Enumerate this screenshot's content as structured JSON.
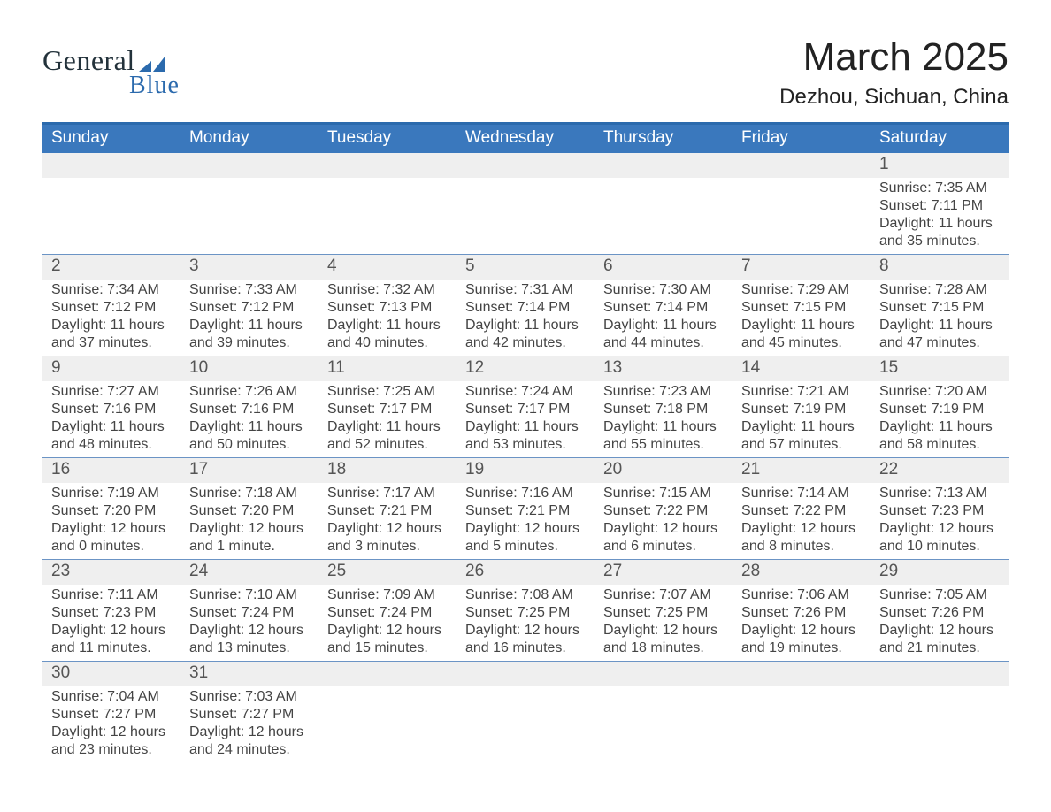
{
  "brand": {
    "text_general": "General",
    "text_blue": "Blue",
    "mark_color": "#2b6aad"
  },
  "title": {
    "main": "March 2025",
    "sub": "Dezhou, Sichuan, China"
  },
  "colors": {
    "header_bg": "#3a78bd",
    "header_border": "#2b6aad",
    "daynum_bg": "#efefef",
    "row_divider": "#6b94c5",
    "text_primary": "#333333",
    "text_light": "#ffffff"
  },
  "dow": [
    "Sunday",
    "Monday",
    "Tuesday",
    "Wednesday",
    "Thursday",
    "Friday",
    "Saturday"
  ],
  "weeks": [
    [
      {
        "n": "",
        "lines": [
          "",
          "",
          "",
          ""
        ]
      },
      {
        "n": "",
        "lines": [
          "",
          "",
          "",
          ""
        ]
      },
      {
        "n": "",
        "lines": [
          "",
          "",
          "",
          ""
        ]
      },
      {
        "n": "",
        "lines": [
          "",
          "",
          "",
          ""
        ]
      },
      {
        "n": "",
        "lines": [
          "",
          "",
          "",
          ""
        ]
      },
      {
        "n": "",
        "lines": [
          "",
          "",
          "",
          ""
        ]
      },
      {
        "n": "1",
        "lines": [
          "Sunrise: 7:35 AM",
          "Sunset: 7:11 PM",
          "Daylight: 11 hours",
          "and 35 minutes."
        ]
      }
    ],
    [
      {
        "n": "2",
        "lines": [
          "Sunrise: 7:34 AM",
          "Sunset: 7:12 PM",
          "Daylight: 11 hours",
          "and 37 minutes."
        ]
      },
      {
        "n": "3",
        "lines": [
          "Sunrise: 7:33 AM",
          "Sunset: 7:12 PM",
          "Daylight: 11 hours",
          "and 39 minutes."
        ]
      },
      {
        "n": "4",
        "lines": [
          "Sunrise: 7:32 AM",
          "Sunset: 7:13 PM",
          "Daylight: 11 hours",
          "and 40 minutes."
        ]
      },
      {
        "n": "5",
        "lines": [
          "Sunrise: 7:31 AM",
          "Sunset: 7:14 PM",
          "Daylight: 11 hours",
          "and 42 minutes."
        ]
      },
      {
        "n": "6",
        "lines": [
          "Sunrise: 7:30 AM",
          "Sunset: 7:14 PM",
          "Daylight: 11 hours",
          "and 44 minutes."
        ]
      },
      {
        "n": "7",
        "lines": [
          "Sunrise: 7:29 AM",
          "Sunset: 7:15 PM",
          "Daylight: 11 hours",
          "and 45 minutes."
        ]
      },
      {
        "n": "8",
        "lines": [
          "Sunrise: 7:28 AM",
          "Sunset: 7:15 PM",
          "Daylight: 11 hours",
          "and 47 minutes."
        ]
      }
    ],
    [
      {
        "n": "9",
        "lines": [
          "Sunrise: 7:27 AM",
          "Sunset: 7:16 PM",
          "Daylight: 11 hours",
          "and 48 minutes."
        ]
      },
      {
        "n": "10",
        "lines": [
          "Sunrise: 7:26 AM",
          "Sunset: 7:16 PM",
          "Daylight: 11 hours",
          "and 50 minutes."
        ]
      },
      {
        "n": "11",
        "lines": [
          "Sunrise: 7:25 AM",
          "Sunset: 7:17 PM",
          "Daylight: 11 hours",
          "and 52 minutes."
        ]
      },
      {
        "n": "12",
        "lines": [
          "Sunrise: 7:24 AM",
          "Sunset: 7:17 PM",
          "Daylight: 11 hours",
          "and 53 minutes."
        ]
      },
      {
        "n": "13",
        "lines": [
          "Sunrise: 7:23 AM",
          "Sunset: 7:18 PM",
          "Daylight: 11 hours",
          "and 55 minutes."
        ]
      },
      {
        "n": "14",
        "lines": [
          "Sunrise: 7:21 AM",
          "Sunset: 7:19 PM",
          "Daylight: 11 hours",
          "and 57 minutes."
        ]
      },
      {
        "n": "15",
        "lines": [
          "Sunrise: 7:20 AM",
          "Sunset: 7:19 PM",
          "Daylight: 11 hours",
          "and 58 minutes."
        ]
      }
    ],
    [
      {
        "n": "16",
        "lines": [
          "Sunrise: 7:19 AM",
          "Sunset: 7:20 PM",
          "Daylight: 12 hours",
          "and 0 minutes."
        ]
      },
      {
        "n": "17",
        "lines": [
          "Sunrise: 7:18 AM",
          "Sunset: 7:20 PM",
          "Daylight: 12 hours",
          "and 1 minute."
        ]
      },
      {
        "n": "18",
        "lines": [
          "Sunrise: 7:17 AM",
          "Sunset: 7:21 PM",
          "Daylight: 12 hours",
          "and 3 minutes."
        ]
      },
      {
        "n": "19",
        "lines": [
          "Sunrise: 7:16 AM",
          "Sunset: 7:21 PM",
          "Daylight: 12 hours",
          "and 5 minutes."
        ]
      },
      {
        "n": "20",
        "lines": [
          "Sunrise: 7:15 AM",
          "Sunset: 7:22 PM",
          "Daylight: 12 hours",
          "and 6 minutes."
        ]
      },
      {
        "n": "21",
        "lines": [
          "Sunrise: 7:14 AM",
          "Sunset: 7:22 PM",
          "Daylight: 12 hours",
          "and 8 minutes."
        ]
      },
      {
        "n": "22",
        "lines": [
          "Sunrise: 7:13 AM",
          "Sunset: 7:23 PM",
          "Daylight: 12 hours",
          "and 10 minutes."
        ]
      }
    ],
    [
      {
        "n": "23",
        "lines": [
          "Sunrise: 7:11 AM",
          "Sunset: 7:23 PM",
          "Daylight: 12 hours",
          "and 11 minutes."
        ]
      },
      {
        "n": "24",
        "lines": [
          "Sunrise: 7:10 AM",
          "Sunset: 7:24 PM",
          "Daylight: 12 hours",
          "and 13 minutes."
        ]
      },
      {
        "n": "25",
        "lines": [
          "Sunrise: 7:09 AM",
          "Sunset: 7:24 PM",
          "Daylight: 12 hours",
          "and 15 minutes."
        ]
      },
      {
        "n": "26",
        "lines": [
          "Sunrise: 7:08 AM",
          "Sunset: 7:25 PM",
          "Daylight: 12 hours",
          "and 16 minutes."
        ]
      },
      {
        "n": "27",
        "lines": [
          "Sunrise: 7:07 AM",
          "Sunset: 7:25 PM",
          "Daylight: 12 hours",
          "and 18 minutes."
        ]
      },
      {
        "n": "28",
        "lines": [
          "Sunrise: 7:06 AM",
          "Sunset: 7:26 PM",
          "Daylight: 12 hours",
          "and 19 minutes."
        ]
      },
      {
        "n": "29",
        "lines": [
          "Sunrise: 7:05 AM",
          "Sunset: 7:26 PM",
          "Daylight: 12 hours",
          "and 21 minutes."
        ]
      }
    ],
    [
      {
        "n": "30",
        "lines": [
          "Sunrise: 7:04 AM",
          "Sunset: 7:27 PM",
          "Daylight: 12 hours",
          "and 23 minutes."
        ]
      },
      {
        "n": "31",
        "lines": [
          "Sunrise: 7:03 AM",
          "Sunset: 7:27 PM",
          "Daylight: 12 hours",
          "and 24 minutes."
        ]
      },
      {
        "n": "",
        "lines": [
          "",
          "",
          "",
          ""
        ]
      },
      {
        "n": "",
        "lines": [
          "",
          "",
          "",
          ""
        ]
      },
      {
        "n": "",
        "lines": [
          "",
          "",
          "",
          ""
        ]
      },
      {
        "n": "",
        "lines": [
          "",
          "",
          "",
          ""
        ]
      },
      {
        "n": "",
        "lines": [
          "",
          "",
          "",
          ""
        ]
      }
    ]
  ]
}
